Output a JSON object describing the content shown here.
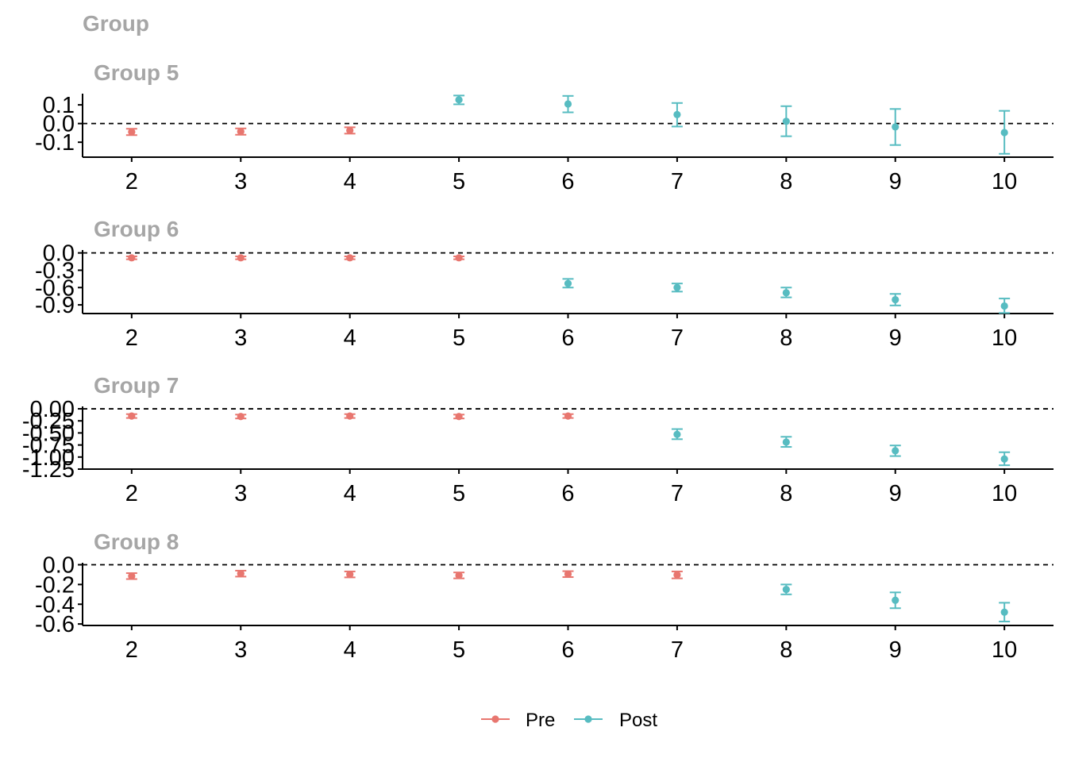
{
  "title": "Group",
  "colors": {
    "Pre": "#e8766f",
    "Post": "#57bcc1",
    "axis": "#000000",
    "title": "#a6a6a6"
  },
  "legend": {
    "position": "bottom",
    "items": [
      {
        "label": "Pre",
        "color": "#e8766f"
      },
      {
        "label": "Post",
        "color": "#57bcc1"
      }
    ]
  },
  "chart_data": [
    {
      "type": "scatter",
      "title": "Group 5",
      "x_ticks": [
        2,
        3,
        4,
        5,
        6,
        7,
        8,
        9,
        10
      ],
      "y_ticks": [
        0.1,
        0.0,
        -0.1
      ],
      "y_tick_labels": [
        "0.1",
        "0.0",
        "-0.1"
      ],
      "ylim": [
        -0.18,
        0.16
      ],
      "xlim": [
        1.55,
        10.45
      ],
      "reference_line": 0,
      "series": [
        {
          "name": "Pre",
          "points": [
            {
              "x": 2,
              "y": -0.045,
              "lo": -0.062,
              "hi": -0.028
            },
            {
              "x": 3,
              "y": -0.043,
              "lo": -0.06,
              "hi": -0.026
            },
            {
              "x": 4,
              "y": -0.037,
              "lo": -0.054,
              "hi": -0.02
            }
          ]
        },
        {
          "name": "Post",
          "points": [
            {
              "x": 5,
              "y": 0.127,
              "lo": 0.103,
              "hi": 0.15
            },
            {
              "x": 6,
              "y": 0.105,
              "lo": 0.06,
              "hi": 0.148
            },
            {
              "x": 7,
              "y": 0.048,
              "lo": -0.016,
              "hi": 0.11
            },
            {
              "x": 8,
              "y": 0.012,
              "lo": -0.068,
              "hi": 0.093
            },
            {
              "x": 9,
              "y": -0.018,
              "lo": -0.115,
              "hi": 0.078
            },
            {
              "x": 10,
              "y": -0.048,
              "lo": -0.162,
              "hi": 0.068
            }
          ]
        }
      ]
    },
    {
      "type": "scatter",
      "title": "Group 6",
      "x_ticks": [
        2,
        3,
        4,
        5,
        6,
        7,
        8,
        9,
        10
      ],
      "y_ticks": [
        0.0,
        -0.3,
        -0.6,
        -0.9
      ],
      "y_tick_labels": [
        "0.0",
        "-0.3",
        "-0.6",
        "-0.9"
      ],
      "ylim": [
        -1.05,
        0.05
      ],
      "xlim": [
        1.55,
        10.45
      ],
      "reference_line": 0,
      "series": [
        {
          "name": "Pre",
          "points": [
            {
              "x": 2,
              "y": -0.085,
              "lo": -0.11,
              "hi": -0.06
            },
            {
              "x": 3,
              "y": -0.085,
              "lo": -0.11,
              "hi": -0.06
            },
            {
              "x": 4,
              "y": -0.085,
              "lo": -0.11,
              "hi": -0.06
            },
            {
              "x": 5,
              "y": -0.085,
              "lo": -0.11,
              "hi": -0.06
            }
          ]
        },
        {
          "name": "Post",
          "points": [
            {
              "x": 6,
              "y": -0.53,
              "lo": -0.6,
              "hi": -0.45
            },
            {
              "x": 7,
              "y": -0.6,
              "lo": -0.67,
              "hi": -0.53
            },
            {
              "x": 8,
              "y": -0.69,
              "lo": -0.77,
              "hi": -0.6
            },
            {
              "x": 9,
              "y": -0.81,
              "lo": -0.91,
              "hi": -0.71
            },
            {
              "x": 10,
              "y": -0.92,
              "lo": -1.04,
              "hi": -0.79
            }
          ]
        }
      ]
    },
    {
      "type": "scatter",
      "title": "Group 7",
      "x_ticks": [
        2,
        3,
        4,
        5,
        6,
        7,
        8,
        9,
        10
      ],
      "y_ticks": [
        0.0,
        -0.25,
        -0.5,
        -0.75,
        -1.0,
        -1.25
      ],
      "y_tick_labels": [
        "0.00",
        "-0.25",
        "-0.50",
        "-0.75",
        "-1.00",
        "-1.25"
      ],
      "ylim": [
        -1.25,
        0.05
      ],
      "xlim": [
        1.55,
        10.45
      ],
      "reference_line": 0,
      "series": [
        {
          "name": "Pre",
          "points": [
            {
              "x": 2,
              "y": -0.15,
              "lo": -0.19,
              "hi": -0.11
            },
            {
              "x": 3,
              "y": -0.16,
              "lo": -0.2,
              "hi": -0.12
            },
            {
              "x": 4,
              "y": -0.15,
              "lo": -0.19,
              "hi": -0.11
            },
            {
              "x": 5,
              "y": -0.16,
              "lo": -0.2,
              "hi": -0.12
            },
            {
              "x": 6,
              "y": -0.15,
              "lo": -0.19,
              "hi": -0.11
            }
          ]
        },
        {
          "name": "Post",
          "points": [
            {
              "x": 7,
              "y": -0.53,
              "lo": -0.63,
              "hi": -0.42
            },
            {
              "x": 8,
              "y": -0.69,
              "lo": -0.79,
              "hi": -0.58
            },
            {
              "x": 9,
              "y": -0.87,
              "lo": -0.98,
              "hi": -0.76
            },
            {
              "x": 10,
              "y": -1.04,
              "lo": -1.17,
              "hi": -0.9
            }
          ]
        }
      ]
    },
    {
      "type": "scatter",
      "title": "Group 8",
      "x_ticks": [
        2,
        3,
        4,
        5,
        6,
        7,
        8,
        9,
        10
      ],
      "y_ticks": [
        0.0,
        -0.2,
        -0.4,
        -0.6
      ],
      "y_tick_labels": [
        "0.0",
        "-0.2",
        "-0.4",
        "-0.6"
      ],
      "ylim": [
        -0.615,
        0.02
      ],
      "xlim": [
        1.55,
        10.45
      ],
      "reference_line": 0,
      "series": [
        {
          "name": "Pre",
          "points": [
            {
              "x": 2,
              "y": -0.115,
              "lo": -0.145,
              "hi": -0.085
            },
            {
              "x": 3,
              "y": -0.09,
              "lo": -0.12,
              "hi": -0.06
            },
            {
              "x": 4,
              "y": -0.098,
              "lo": -0.128,
              "hi": -0.068
            },
            {
              "x": 5,
              "y": -0.108,
              "lo": -0.138,
              "hi": -0.078
            },
            {
              "x": 6,
              "y": -0.095,
              "lo": -0.125,
              "hi": -0.065
            },
            {
              "x": 7,
              "y": -0.103,
              "lo": -0.138,
              "hi": -0.068
            }
          ]
        },
        {
          "name": "Post",
          "points": [
            {
              "x": 8,
              "y": -0.25,
              "lo": -0.3,
              "hi": -0.2
            },
            {
              "x": 9,
              "y": -0.36,
              "lo": -0.44,
              "hi": -0.28
            },
            {
              "x": 10,
              "y": -0.48,
              "lo": -0.575,
              "hi": -0.385
            }
          ]
        }
      ]
    }
  ]
}
